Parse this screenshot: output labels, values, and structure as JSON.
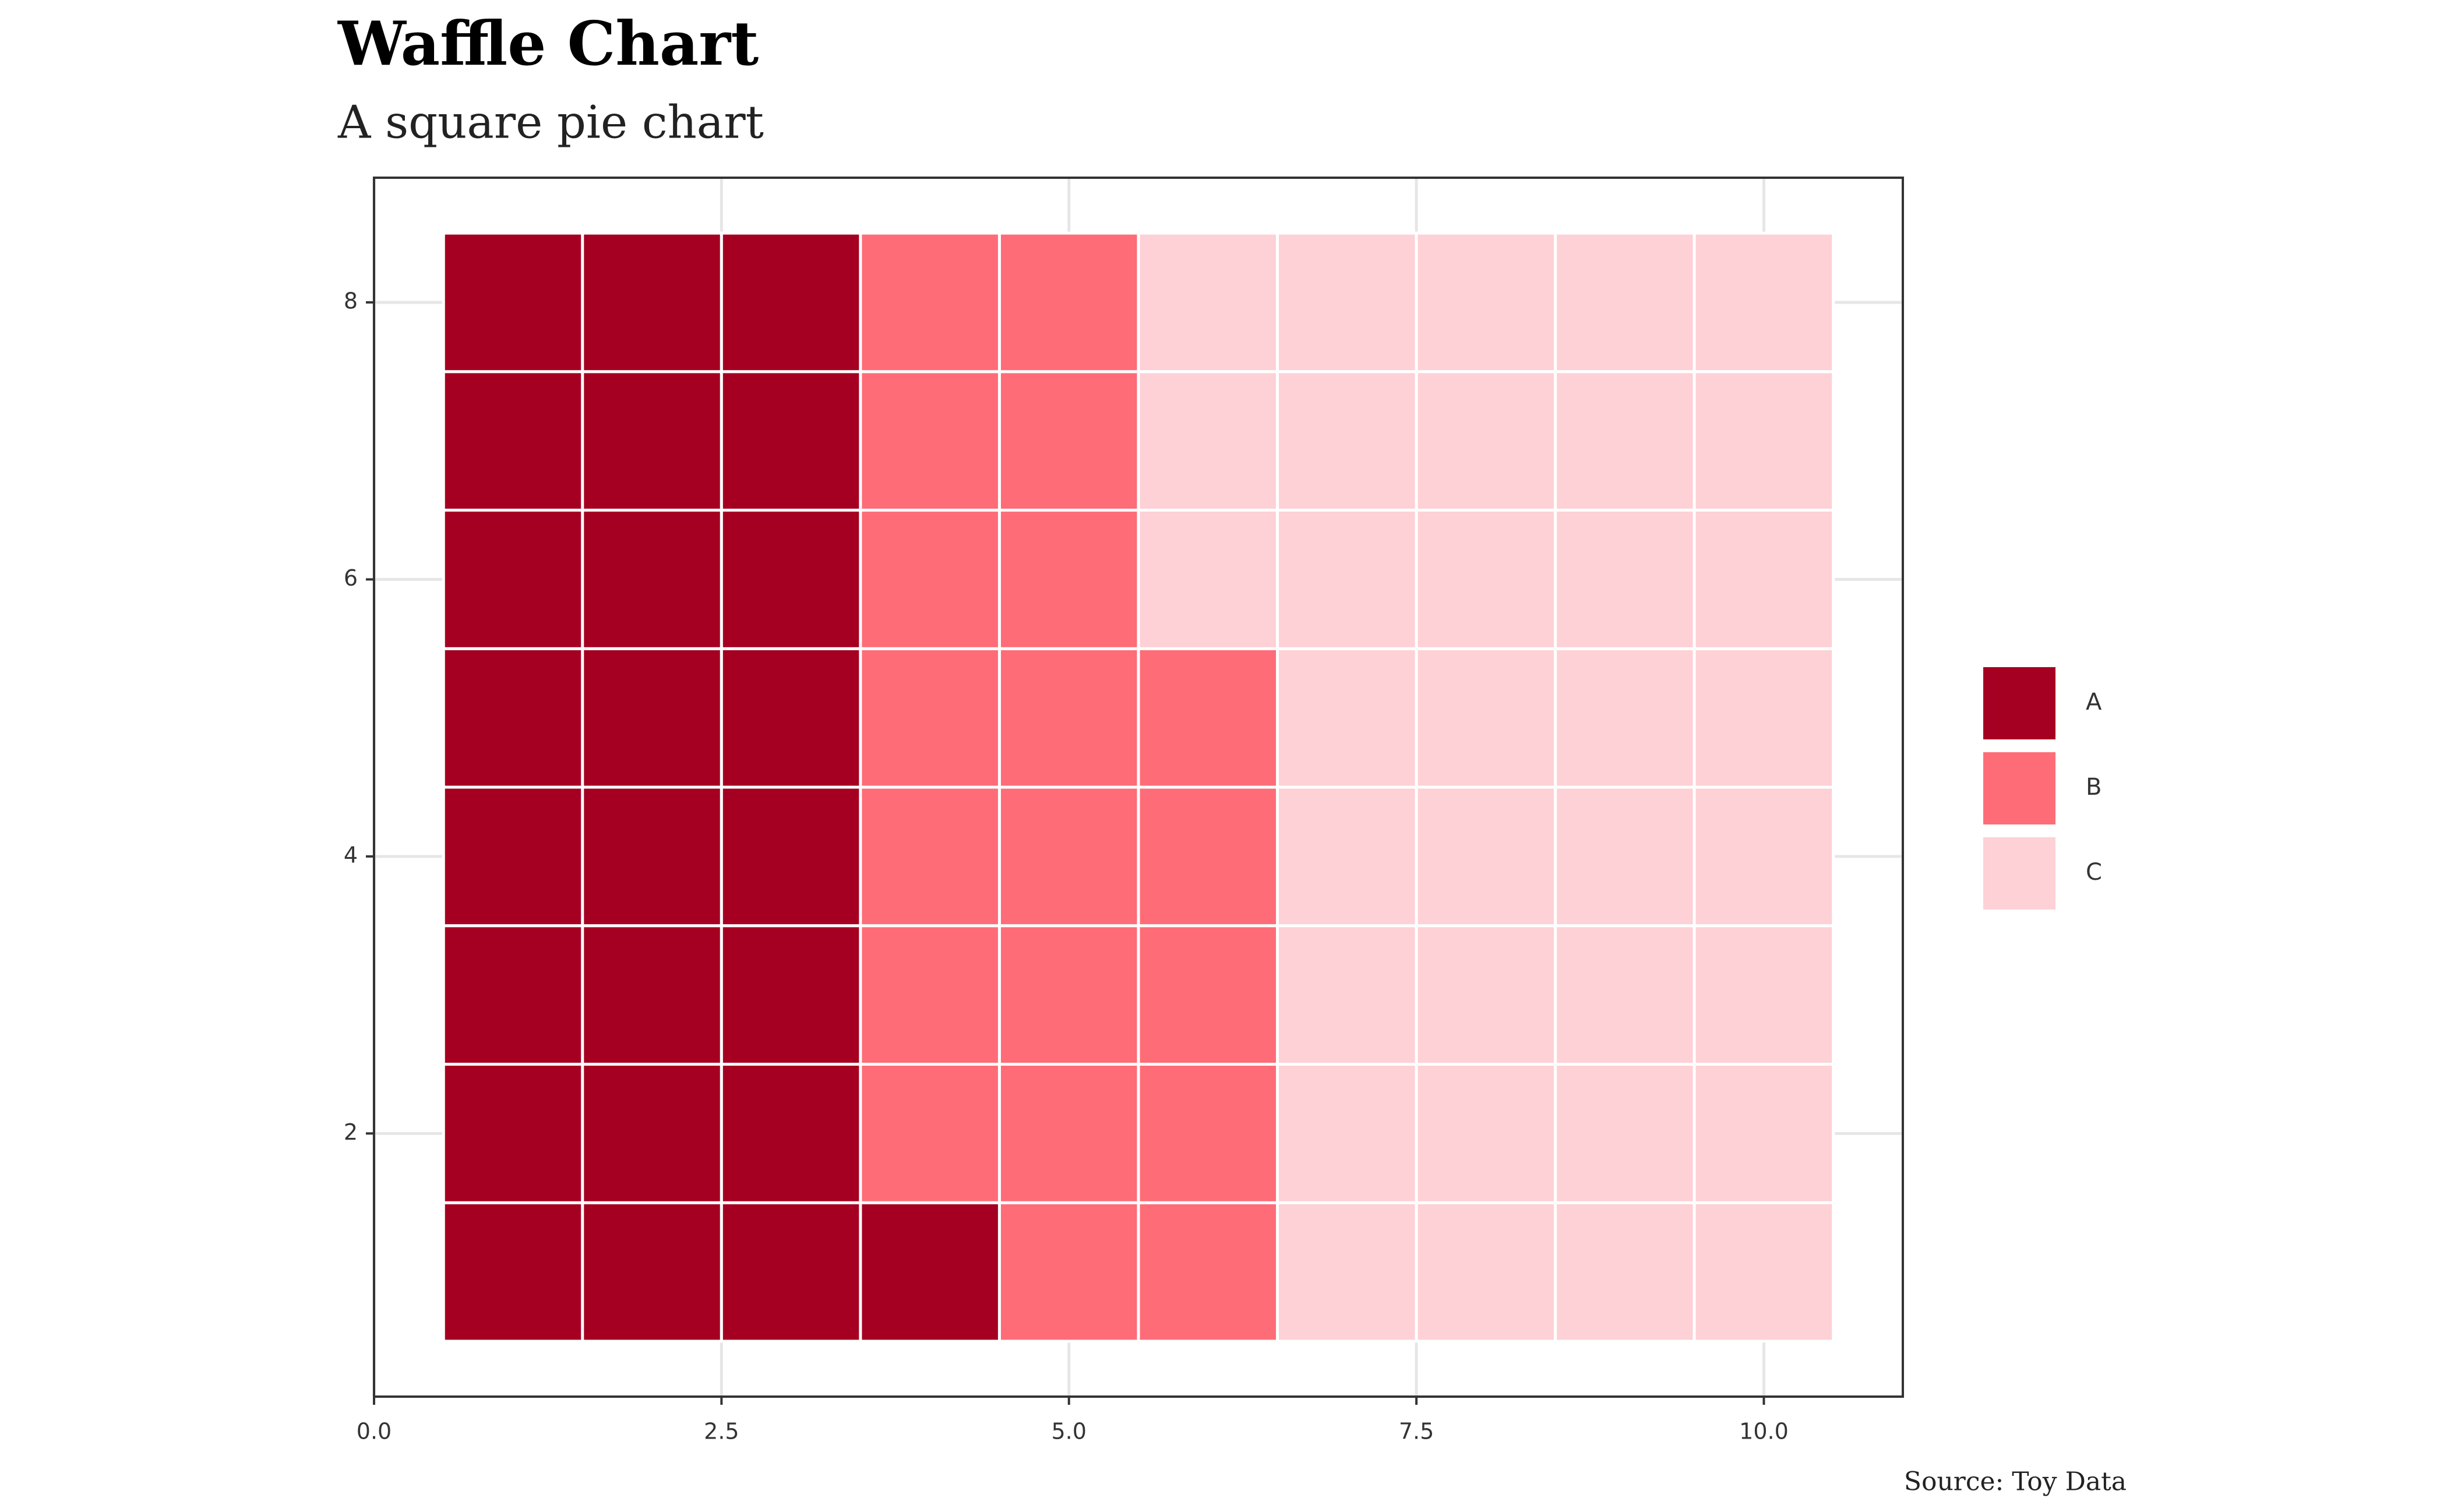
{
  "chart_data": {
    "type": "waffle",
    "title": "Waffle Chart",
    "subtitle": "A square pie chart",
    "caption": "Source: Toy Data",
    "categories": [
      "A",
      "B",
      "C"
    ],
    "values": [
      25,
      20,
      35
    ],
    "colors": [
      "#a50021",
      "#fe6c78",
      "#fdd1d5"
    ],
    "rows": 8,
    "columns": 10,
    "xlim": [
      0,
      11
    ],
    "ylim": [
      0.1,
      8.9
    ],
    "xticks": [
      {
        "value": 0,
        "label": "0.0"
      },
      2.5,
      {
        "value": 5,
        "label": "5.0"
      },
      7.5,
      {
        "value": 10,
        "label": "10.0"
      }
    ],
    "yticks": [
      2,
      4,
      6,
      8
    ],
    "grid": true,
    "legend": "right"
  }
}
